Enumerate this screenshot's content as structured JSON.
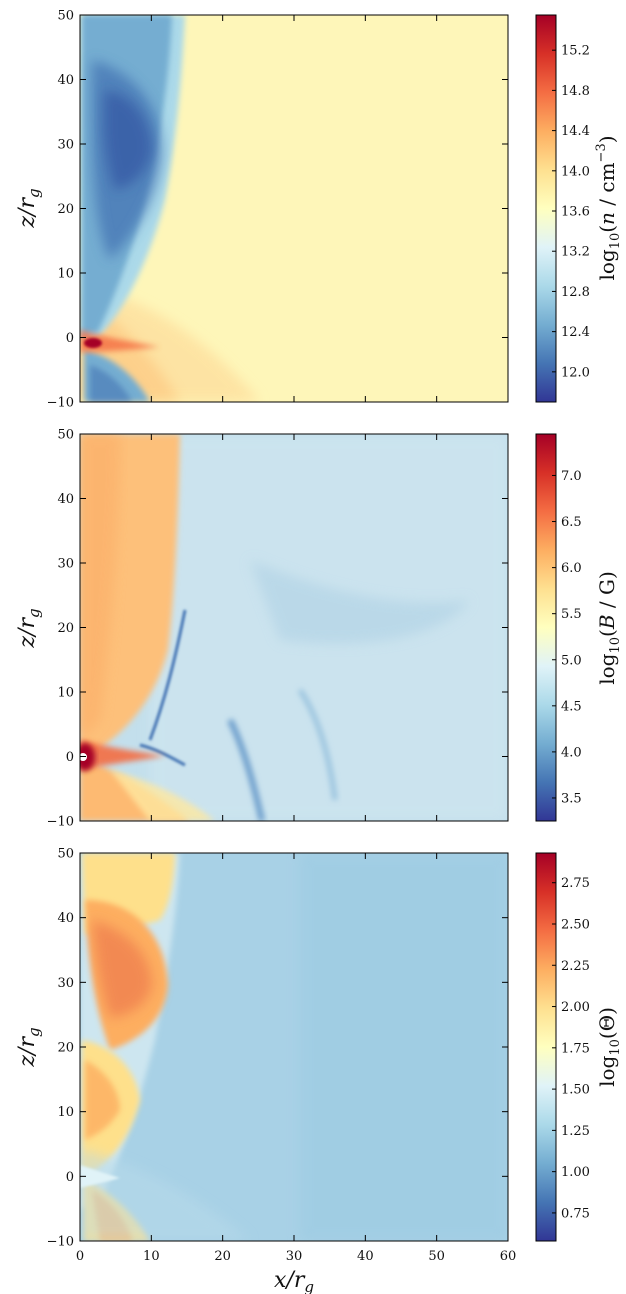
{
  "chart_data": [
    {
      "type": "heatmap",
      "xlim": [
        0,
        60
      ],
      "ylim": [
        -10,
        50
      ],
      "xticks": [],
      "yticks": [
        "−10",
        "0",
        "10",
        "20",
        "30",
        "40",
        "50"
      ],
      "xlabel": "",
      "ylabel": "z/r_g",
      "colorbar": {
        "label": "log10(n / cm^-3)",
        "range": [
          11.7,
          15.55
        ],
        "ticks": [
          "12.0",
          "12.4",
          "12.8",
          "13.2",
          "13.6",
          "14.0",
          "14.4",
          "14.8",
          "15.2"
        ],
        "colormap": "RdYlBu_r"
      },
      "background_value": 13.9
    },
    {
      "type": "heatmap",
      "xlim": [
        0,
        60
      ],
      "ylim": [
        -10,
        50
      ],
      "xticks": [],
      "yticks": [
        "−10",
        "0",
        "10",
        "20",
        "30",
        "40",
        "50"
      ],
      "xlabel": "",
      "ylabel": "z/r_g",
      "colorbar": {
        "label": "log10(B / G)",
        "range": [
          3.25,
          7.45
        ],
        "ticks": [
          "3.5",
          "4.0",
          "4.5",
          "5.0",
          "5.5",
          "6.0",
          "6.5",
          "7.0"
        ],
        "colormap": "RdYlBu_r"
      },
      "background_value": 4.7
    },
    {
      "type": "heatmap",
      "xlim": [
        0,
        60
      ],
      "ylim": [
        -10,
        50
      ],
      "xticks": [
        "0",
        "10",
        "20",
        "30",
        "40",
        "50",
        "60"
      ],
      "yticks": [
        "−10",
        "0",
        "10",
        "20",
        "30",
        "40",
        "50"
      ],
      "xlabel": "x/r_g",
      "ylabel": "z/r_g",
      "colorbar": {
        "label": "log10(Θ)",
        "range": [
          0.58,
          2.93
        ],
        "ticks": [
          "0.75",
          "1.00",
          "1.25",
          "1.50",
          "1.75",
          "2.00",
          "2.25",
          "2.50",
          "2.75"
        ],
        "colormap": "RdYlBu_r"
      },
      "background_value": 1.2
    }
  ],
  "colors": {
    "cmap_stops": [
      "#313695",
      "#4575b4",
      "#74add1",
      "#abd9e9",
      "#e0f3f8",
      "#ffffbf",
      "#fee090",
      "#fdae61",
      "#f46d43",
      "#d73027",
      "#a50026"
    ]
  }
}
